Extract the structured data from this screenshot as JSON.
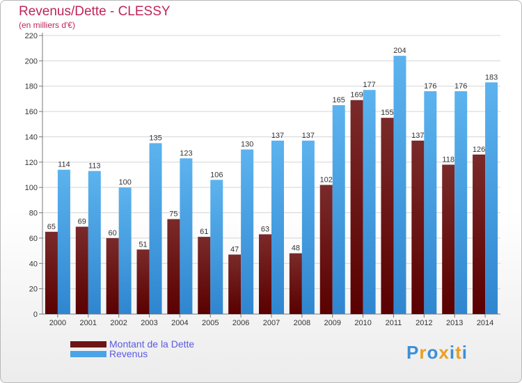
{
  "chart_data": {
    "type": "bar",
    "title": "Revenus/Dette - CLESSY",
    "subtitle": "(en milliers d'€)",
    "categories": [
      "2000",
      "2001",
      "2002",
      "2003",
      "2004",
      "2005",
      "2006",
      "2007",
      "2008",
      "2009",
      "2010",
      "2011",
      "2012",
      "2013",
      "2014"
    ],
    "series": [
      {
        "name": "Montant de la Dette",
        "color": "#6e1414",
        "values": [
          65,
          69,
          60,
          51,
          75,
          61,
          47,
          63,
          48,
          102,
          169,
          155,
          137,
          118,
          126
        ]
      },
      {
        "name": "Revenus",
        "color": "#4aa3e6",
        "values": [
          114,
          113,
          100,
          135,
          123,
          106,
          130,
          137,
          137,
          165,
          177,
          204,
          176,
          176,
          183
        ]
      }
    ],
    "ylim": [
      0,
      220
    ],
    "yticks": [
      0,
      20,
      40,
      60,
      80,
      100,
      120,
      140,
      160,
      180,
      200,
      220
    ],
    "grid": true,
    "legend_position": "bottom-left"
  },
  "logo": {
    "letters": [
      "P",
      "r",
      "o",
      "x",
      "i",
      "t",
      "i"
    ],
    "colors": [
      "#3a8fd8",
      "#e8a020",
      "#3a8fd8",
      "#e8a020",
      "#3a8fd8",
      "#e8a020",
      "#3a8fd8"
    ]
  }
}
